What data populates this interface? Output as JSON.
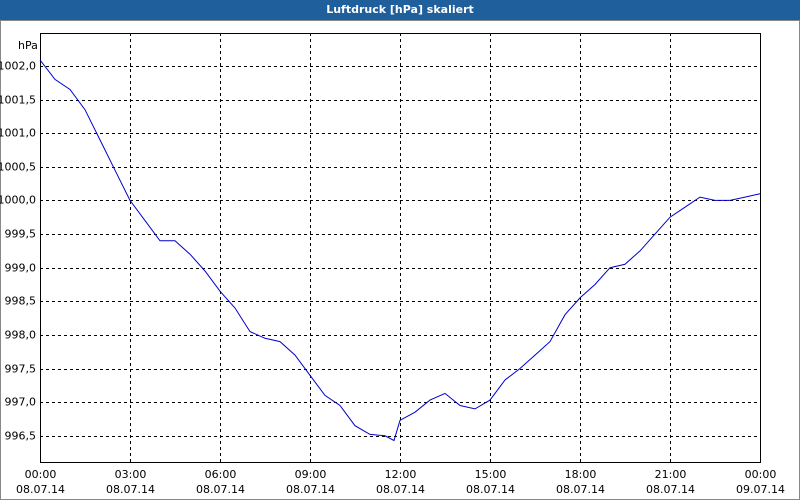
{
  "chart_data": {
    "type": "line",
    "title": "Luftdruck [hPa] skaliert",
    "y_label": "hPa",
    "x": [
      0,
      0.5,
      1,
      1.5,
      2,
      2.5,
      3,
      3.5,
      4,
      4.5,
      5,
      5.5,
      6,
      6.5,
      7,
      7.5,
      8,
      8.5,
      9,
      9.5,
      10,
      10.5,
      11,
      11.5,
      11.8,
      12,
      12.5,
      13,
      13.5,
      14,
      14.5,
      15,
      15.5,
      16,
      16.5,
      17,
      17.5,
      18,
      18.5,
      19,
      19.5,
      20,
      20.5,
      21,
      21.5,
      22,
      22.5,
      23,
      23.5,
      24
    ],
    "series": [
      {
        "name": "Luftdruck",
        "color": "#0000cc",
        "values": [
          1002.09,
          1001.8,
          1001.65,
          1001.35,
          1000.9,
          1000.45,
          1000.0,
          999.7,
          999.4,
          999.4,
          999.2,
          998.95,
          998.65,
          998.4,
          998.05,
          997.95,
          997.9,
          997.7,
          997.4,
          997.1,
          996.95,
          996.65,
          996.52,
          996.5,
          996.43,
          996.73,
          996.85,
          997.03,
          997.13,
          996.95,
          996.9,
          997.03,
          997.33,
          997.5,
          997.7,
          997.9,
          998.3,
          998.55,
          998.75,
          999.0,
          999.05,
          999.25,
          999.5,
          999.75,
          999.9,
          1000.05,
          1000.0,
          1000.0,
          1000.05,
          1000.1
        ]
      }
    ],
    "xlim": [
      0,
      24
    ],
    "xticks": [
      {
        "value": 0,
        "label": "00:00"
      },
      {
        "value": 3,
        "label": "03:00"
      },
      {
        "value": 6,
        "label": "06:00"
      },
      {
        "value": 9,
        "label": "09:00"
      },
      {
        "value": 12,
        "label": "12:00"
      },
      {
        "value": 15,
        "label": "15:00"
      },
      {
        "value": 18,
        "label": "18:00"
      },
      {
        "value": 21,
        "label": "21:00"
      },
      {
        "value": 24,
        "label": "00:00"
      }
    ],
    "xtick_dates": [
      "08.07.14",
      "08.07.14",
      "08.07.14",
      "08.07.14",
      "08.07.14",
      "08.07.14",
      "08.07.14",
      "08.07.14",
      "09.07.14"
    ],
    "ylim": [
      996.11,
      1002.49
    ],
    "yticks": [
      {
        "value": 996.5,
        "label": "996,5"
      },
      {
        "value": 997,
        "label": "997,0"
      },
      {
        "value": 997.5,
        "label": "997,5"
      },
      {
        "value": 998,
        "label": "998,0"
      },
      {
        "value": 998.5,
        "label": "998,5"
      },
      {
        "value": 999,
        "label": "999,0"
      },
      {
        "value": 999.5,
        "label": "999,5"
      },
      {
        "value": 1000,
        "label": "1000,0"
      },
      {
        "value": 1000.5,
        "label": "1000,5"
      },
      {
        "value": 1001,
        "label": "1001,0"
      },
      {
        "value": 1001.5,
        "label": "1001,5"
      },
      {
        "value": 1002,
        "label": "1002,0"
      }
    ],
    "grid": true
  }
}
